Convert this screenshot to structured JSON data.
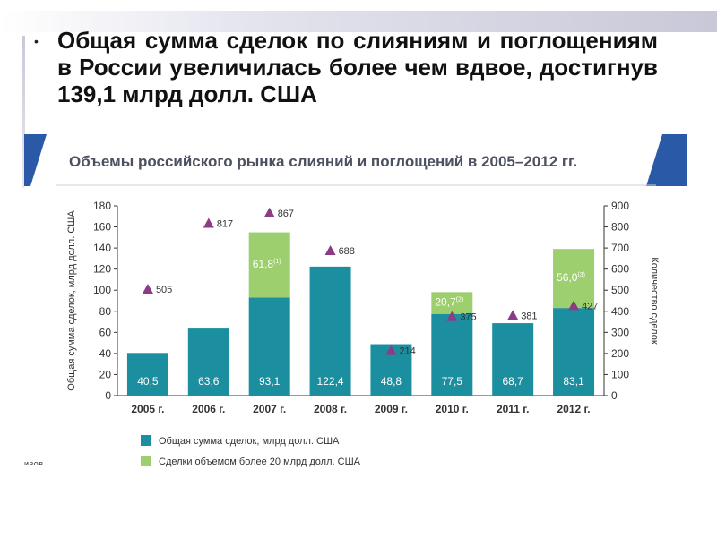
{
  "slide": {
    "bullet_symbol": "•",
    "bullet_text": "Общая сумма сделок по слияниям и поглощениям в России увеличилась более чем вдвое, достигнув 139,1 млрд долл. США",
    "cutoff_text": "ивов"
  },
  "colors": {
    "primary_bar": "#1b8ea0",
    "secondary_bar": "#9ecf6e",
    "marker": "#8e3b86",
    "ribbon": "#2a59a8",
    "deco_square_dark": "#1a1a80",
    "deco_square_light": "#7a7aba"
  },
  "chart_data": {
    "type": "bar",
    "title": "Объемы российского рынка слияний и поглощений в 2005–2012 гг.",
    "categories": [
      "2005 г.",
      "2006 г.",
      "2007 г.",
      "2008 г.",
      "2009 г.",
      "2010 г.",
      "2011 г.",
      "2012 г."
    ],
    "series": [
      {
        "name": "Общая сумма сделок, млрд долл. США",
        "values": [
          40.5,
          63.6,
          93.1,
          122.4,
          48.8,
          77.5,
          68.7,
          83.1
        ],
        "labels": [
          "40,5",
          "63,6",
          "93,1",
          "122,4",
          "48,8",
          "77,5",
          "68,7",
          "83,1"
        ]
      },
      {
        "name": "Сделки объемом более 20 млрд долл. США",
        "values": [
          null,
          null,
          61.8,
          null,
          null,
          20.7,
          null,
          56.0
        ],
        "labels": [
          "",
          "",
          "61,8",
          "",
          "",
          "20,7",
          "",
          "56,0"
        ],
        "superscripts": [
          "",
          "",
          "(1)",
          "",
          "",
          "(2)",
          "",
          "(3)"
        ]
      }
    ],
    "deal_count": {
      "values": [
        505,
        817,
        867,
        688,
        214,
        375,
        381,
        427
      ],
      "labels": [
        "505",
        "817",
        "867",
        "688",
        "214",
        "375",
        "381",
        "427"
      ]
    },
    "ylabel_left": "Общая сумма сделок, млрд долл. США",
    "ylabel_right": "Количество сделок",
    "ylim_left": [
      0,
      180
    ],
    "yticks_left": [
      "0",
      "20",
      "40",
      "60",
      "80",
      "100",
      "120",
      "140",
      "160",
      "180"
    ],
    "ylim_right": [
      0,
      900
    ],
    "yticks_right": [
      "0",
      "100",
      "200",
      "300",
      "400",
      "500",
      "600",
      "700",
      "800",
      "900"
    ],
    "grid": false,
    "legend_position": "bottom-left"
  }
}
